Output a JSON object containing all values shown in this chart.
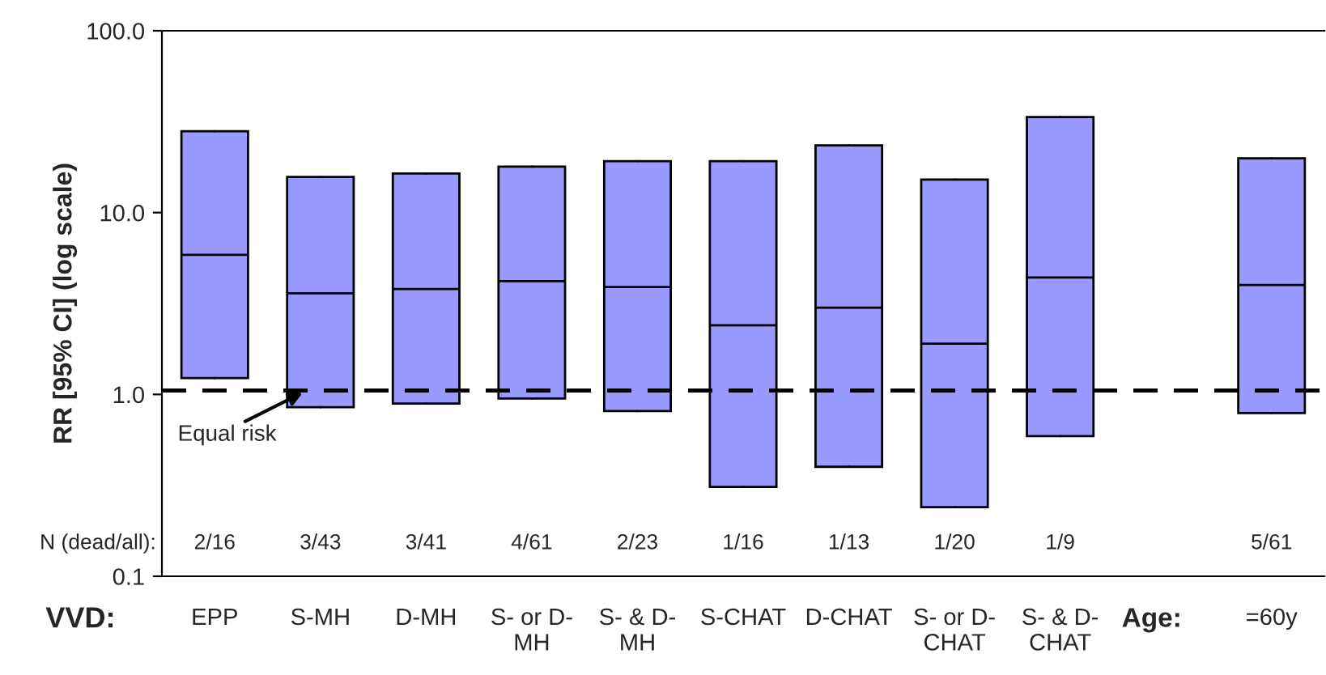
{
  "chart_data": {
    "type": "box",
    "ylabel": "RR [95% CI] (log scale)",
    "log": true,
    "categories": [
      "EPP",
      "S-MH",
      "D-MH",
      "S- or D-\nMH",
      "S- & D-\nMH",
      "S-CHAT",
      "D-CHAT",
      "S- or D-\nCHAT",
      "S- & D-\nCHAT",
      null,
      "=60y"
    ],
    "boxes": [
      {
        "low": 1.23,
        "q1": 1.23,
        "median": 5.85,
        "q3": 28.0,
        "high": 28.0
      },
      {
        "low": 0.85,
        "q1": 0.85,
        "median": 3.6,
        "q3": 15.7,
        "high": 15.7
      },
      {
        "low": 0.89,
        "q1": 0.89,
        "median": 3.8,
        "q3": 16.4,
        "high": 16.4
      },
      {
        "low": 0.95,
        "q1": 0.95,
        "median": 4.2,
        "q3": 17.9,
        "high": 17.9
      },
      {
        "low": 0.81,
        "q1": 0.81,
        "median": 3.9,
        "q3": 19.2,
        "high": 19.2
      },
      {
        "low": 0.31,
        "q1": 0.31,
        "median": 2.4,
        "q3": 19.2,
        "high": 19.2
      },
      {
        "low": 0.4,
        "q1": 0.4,
        "median": 3.0,
        "q3": 23.4,
        "high": 23.4
      },
      {
        "low": 0.24,
        "q1": 0.24,
        "median": 1.9,
        "q3": 15.2,
        "high": 15.2
      },
      {
        "low": 0.59,
        "q1": 0.59,
        "median": 4.4,
        "q3": 33.5,
        "high": 33.5
      },
      null,
      {
        "low": 0.79,
        "q1": 0.79,
        "median": 4.0,
        "q3": 19.9,
        "high": 19.9
      }
    ],
    "color": "#9999ff",
    "ylim": [
      0.1,
      100
    ],
    "yticks": [
      0.1,
      {
        "value": 1,
        "label": "1.0"
      },
      {
        "value": 10,
        "label": "10.0"
      },
      {
        "value": 100,
        "label": "100.0"
      }
    ],
    "ref_lines": [
      {
        "axis": "y",
        "value": 1.05,
        "label": "Equal risk",
        "line_style": "dashed"
      }
    ],
    "grid": false,
    "annotations": [
      "VVD:",
      "Age:",
      "N (dead/all):",
      "2/16",
      "3/43",
      "3/41",
      "4/61",
      "2/23",
      "1/16",
      "1/13",
      "1/20",
      "1/9",
      "5/61"
    ]
  }
}
